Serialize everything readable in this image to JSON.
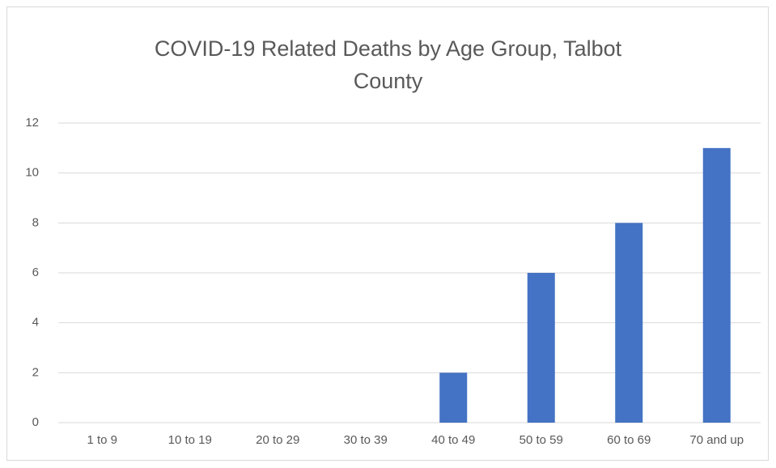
{
  "chart_data": {
    "type": "bar",
    "title": "COVID-19 Related Deaths by Age Group, Talbot County",
    "categories": [
      "1 to 9",
      "10 to 19",
      "20 to 29",
      "30 to 39",
      "40 to 49",
      "50 to 59",
      "60 to 69",
      "70 and up"
    ],
    "values": [
      0,
      0,
      0,
      0,
      2,
      6,
      8,
      11
    ],
    "color": "#4472c4",
    "ylim": [
      0,
      12
    ],
    "yticks": [
      0,
      2,
      4,
      6,
      8,
      10,
      12
    ],
    "grid": true
  }
}
